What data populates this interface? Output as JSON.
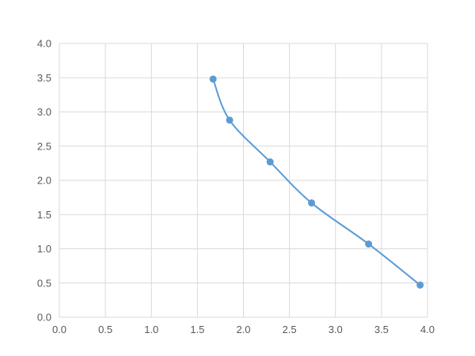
{
  "chart_data": {
    "type": "scatter",
    "title": "",
    "xlabel": "",
    "ylabel": "",
    "xlim": [
      0,
      4
    ],
    "ylim": [
      0,
      4
    ],
    "x_ticks": [
      "0.0",
      "0.5",
      "1.0",
      "1.5",
      "2.0",
      "2.5",
      "3.0",
      "3.5",
      "4.0"
    ],
    "y_ticks": [
      "0.0",
      "0.5",
      "1.0",
      "1.5",
      "2.0",
      "2.5",
      "3.0",
      "3.5",
      "4.0"
    ],
    "grid": true,
    "legend": "none",
    "series": [
      {
        "color": "#5b9bd5",
        "smooth_line": true,
        "markers": true,
        "points": [
          {
            "x": 1.67,
            "y": 3.48
          },
          {
            "x": 1.85,
            "y": 2.88
          },
          {
            "x": 2.29,
            "y": 2.27
          },
          {
            "x": 2.74,
            "y": 1.67
          },
          {
            "x": 3.36,
            "y": 1.07
          },
          {
            "x": 3.92,
            "y": 0.47
          }
        ]
      }
    ],
    "grid_color": "#d9d9d9",
    "axis_color": "#d9d9d9",
    "tick_color": "#595959"
  }
}
